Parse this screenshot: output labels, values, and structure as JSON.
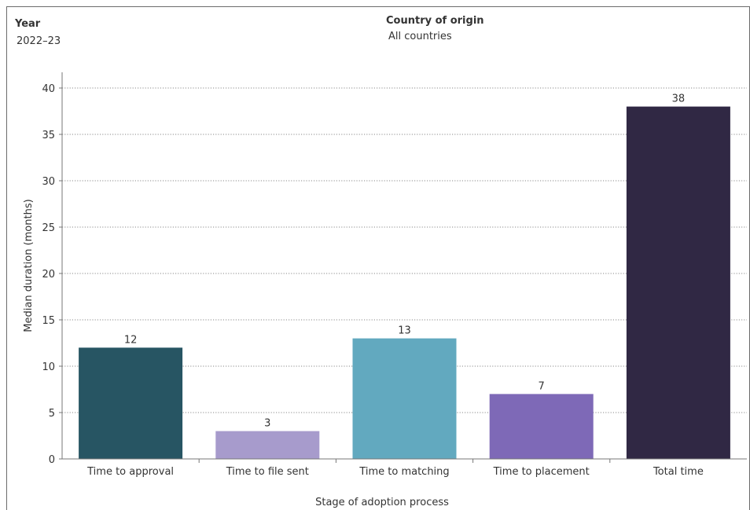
{
  "filters": {
    "year_label": "Year",
    "year_value": "2022–23",
    "country_label": "Country of origin",
    "country_value": "All countries"
  },
  "chart_data": {
    "type": "bar",
    "title": "",
    "xlabel": "Stage of adoption process",
    "ylabel": "Median duration (months)",
    "ylim": [
      0,
      40
    ],
    "yticks": [
      0,
      5,
      10,
      15,
      20,
      25,
      30,
      35,
      40
    ],
    "grid": true,
    "categories": [
      "Time to approval",
      "Time to file sent",
      "Time to matching",
      "Time to placement",
      "Total time"
    ],
    "values": [
      12,
      3,
      13,
      7,
      38
    ],
    "colors": [
      "#275563",
      "#a79bcc",
      "#62a9bf",
      "#7e69b7",
      "#302844"
    ]
  }
}
